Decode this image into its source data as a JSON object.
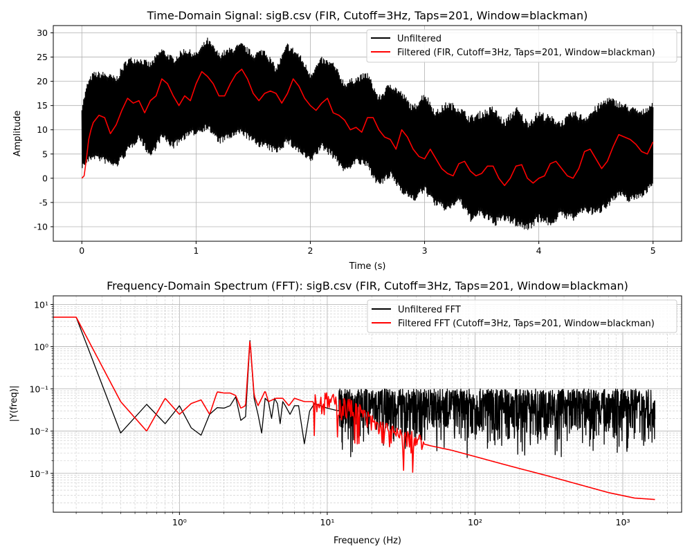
{
  "chart_data": [
    {
      "type": "line",
      "title": "Time-Domain Signal: sigB.csv (FIR, Cutoff=3Hz, Taps=201, Window=blackman)",
      "xlabel": "Time (s)",
      "ylabel": "Amplitude",
      "xlim": [
        -0.25,
        5.25
      ],
      "ylim": [
        -13,
        31.5
      ],
      "xticks": [
        0,
        1,
        2,
        3,
        4,
        5
      ],
      "yticks": [
        -10,
        -5,
        0,
        5,
        10,
        15,
        20,
        25,
        30
      ],
      "grid": true,
      "legend_position": "top-right",
      "series": [
        {
          "name": "Unfiltered",
          "color": "#000000",
          "style": "band",
          "x": [
            0,
            0.05,
            0.1,
            0.2,
            0.3,
            0.4,
            0.5,
            0.6,
            0.7,
            0.8,
            0.9,
            1.0,
            1.1,
            1.2,
            1.3,
            1.4,
            1.5,
            1.6,
            1.7,
            1.8,
            1.9,
            2.0,
            2.1,
            2.2,
            2.3,
            2.4,
            2.5,
            2.6,
            2.7,
            2.8,
            2.9,
            3.0,
            3.1,
            3.2,
            3.3,
            3.4,
            3.5,
            3.6,
            3.7,
            3.8,
            3.9,
            4.0,
            4.1,
            4.2,
            4.3,
            4.4,
            4.5,
            4.6,
            4.7,
            4.8,
            4.9,
            5.0
          ],
          "upper": [
            15,
            20,
            22,
            22,
            21,
            25,
            25,
            24,
            27,
            25,
            27,
            26,
            29,
            26,
            27,
            28,
            26,
            27,
            23,
            28,
            26,
            22,
            25,
            24,
            20,
            21,
            22,
            17,
            20,
            18,
            15,
            18,
            14,
            16,
            15,
            13,
            14,
            15,
            12,
            15,
            12,
            14,
            13,
            12,
            14,
            13,
            15,
            17,
            16,
            15,
            14,
            16
          ],
          "lower": [
            2,
            3,
            4,
            3,
            2,
            5,
            8,
            4,
            8,
            6,
            8,
            9,
            10,
            7,
            8,
            9,
            7,
            6,
            5,
            7,
            5,
            3,
            6,
            4,
            1,
            3,
            2,
            -2,
            0,
            -3,
            -5,
            -3,
            -6,
            -7,
            -5,
            -9,
            -8,
            -10,
            -9,
            -10,
            -11,
            -9,
            -10,
            -8,
            -9,
            -7,
            -8,
            -6,
            -4,
            -5,
            -4,
            -2
          ]
        },
        {
          "name": "Filtered (FIR, Cutoff=3Hz, Taps=201, Window=blackman)",
          "color": "#ff0000",
          "style": "line",
          "x": [
            0,
            0.02,
            0.04,
            0.06,
            0.08,
            0.1,
            0.15,
            0.2,
            0.25,
            0.3,
            0.35,
            0.4,
            0.45,
            0.5,
            0.55,
            0.6,
            0.65,
            0.7,
            0.75,
            0.8,
            0.85,
            0.9,
            0.95,
            1.0,
            1.05,
            1.1,
            1.15,
            1.2,
            1.25,
            1.3,
            1.35,
            1.4,
            1.45,
            1.5,
            1.55,
            1.6,
            1.65,
            1.7,
            1.75,
            1.8,
            1.85,
            1.9,
            1.95,
            2.0,
            2.05,
            2.1,
            2.15,
            2.2,
            2.25,
            2.3,
            2.35,
            2.4,
            2.45,
            2.5,
            2.55,
            2.6,
            2.65,
            2.7,
            2.75,
            2.8,
            2.85,
            2.9,
            2.95,
            3.0,
            3.05,
            3.1,
            3.15,
            3.2,
            3.25,
            3.3,
            3.35,
            3.4,
            3.45,
            3.5,
            3.55,
            3.6,
            3.65,
            3.7,
            3.75,
            3.8,
            3.85,
            3.9,
            3.95,
            4.0,
            4.05,
            4.1,
            4.15,
            4.2,
            4.25,
            4.3,
            4.35,
            4.4,
            4.45,
            4.5,
            4.55,
            4.6,
            4.65,
            4.7,
            4.75,
            4.8,
            4.85,
            4.9,
            4.95,
            5.0
          ],
          "y": [
            0,
            0.5,
            4,
            8,
            10,
            11.5,
            13,
            12.5,
            9.2,
            11,
            14,
            16.5,
            15.5,
            16,
            13.5,
            16,
            17,
            20.5,
            19.5,
            17,
            15,
            17,
            16,
            19.5,
            22,
            21,
            19.5,
            17,
            17,
            19.5,
            21.5,
            22.5,
            20.5,
            17.5,
            16,
            17.5,
            18,
            17.5,
            15.5,
            17.5,
            20.5,
            19,
            16.5,
            15,
            14,
            15.5,
            16.5,
            13.5,
            13,
            12,
            10,
            10.5,
            9.5,
            12.5,
            12.5,
            10,
            8.5,
            8,
            6,
            10,
            8.5,
            6,
            4.5,
            4,
            6,
            4,
            2,
            1,
            0.5,
            3,
            3.5,
            1.5,
            0.5,
            1,
            2.5,
            2.5,
            0,
            -1.5,
            0,
            2.5,
            2.8,
            0,
            -1,
            0,
            0.5,
            3,
            3.5,
            2,
            0.5,
            0,
            2,
            5.5,
            6,
            4,
            2,
            3.5,
            6.5,
            9,
            8.5,
            8,
            7,
            5.5,
            5,
            7.5
          ]
        }
      ]
    },
    {
      "type": "line",
      "title": "Frequency-Domain Spectrum (FFT): sigB.csv (FIR, Cutoff=3Hz, Taps=201, Window=blackman)",
      "xlabel": "Frequency (Hz)",
      "ylabel": "|Y(freq)|",
      "xscale": "log",
      "yscale": "log",
      "xlim": [
        0.14,
        2500
      ],
      "ylim": [
        0.00012,
        16
      ],
      "xticks": [
        1,
        10,
        100,
        1000
      ],
      "xtick_labels": [
        "10⁰",
        "10¹",
        "10²",
        "10³"
      ],
      "yticks": [
        0.001,
        0.01,
        0.1,
        1,
        10
      ],
      "ytick_labels": [
        "10⁻³",
        "10⁻²",
        "10⁻¹",
        "10⁰",
        "10¹"
      ],
      "grid": true,
      "legend_position": "top-right",
      "series": [
        {
          "name": "Unfiltered FFT",
          "color": "#000000",
          "x": [
            0.05,
            0.2,
            0.4,
            0.6,
            0.8,
            1.0,
            1.2,
            1.4,
            1.6,
            1.8,
            2.0,
            2.2,
            2.4,
            2.6,
            2.8,
            3.0,
            3.2,
            3.4,
            3.6,
            3.8,
            4.0,
            4.2,
            4.4,
            4.6,
            4.8,
            5.0,
            5.2,
            5.6,
            6.0,
            6.4,
            7.0,
            7.6,
            8.2,
            9.0,
            10,
            12,
            15,
            20,
            30,
            50,
            100,
            200,
            400,
            800,
            1200,
            1400,
            1500,
            1650
          ],
          "y": [
            5,
            5,
            0.009,
            0.043,
            0.015,
            0.04,
            0.012,
            0.008,
            0.025,
            0.036,
            0.035,
            0.04,
            0.065,
            0.018,
            0.022,
            1.4,
            0.06,
            0.025,
            0.009,
            0.06,
            0.05,
            0.02,
            0.06,
            0.045,
            0.015,
            0.05,
            0.04,
            0.025,
            0.04,
            0.04,
            0.005,
            0.03,
            0.045,
            0.04,
            0.035,
            0.03,
            0.02,
            0.025,
            0.025,
            0.02,
            0.02,
            0.02,
            0.02,
            0.02,
            0.02,
            0.02,
            0.02,
            0.02
          ],
          "noise_band": {
            "from_hz": 12,
            "to_hz": 1650,
            "upper": 0.1,
            "lower": 0.0022
          }
        },
        {
          "name": "Filtered FFT (Cutoff=3Hz, Taps=201, Window=blackman)",
          "color": "#ff0000",
          "x": [
            0.05,
            0.2,
            0.4,
            0.6,
            0.8,
            1.0,
            1.2,
            1.4,
            1.6,
            1.8,
            2.0,
            2.2,
            2.4,
            2.6,
            2.8,
            3.0,
            3.2,
            3.4,
            3.6,
            3.8,
            4.0,
            4.5,
            5.0,
            5.5,
            6.0,
            7.0,
            8.0,
            9.0,
            10,
            12,
            14,
            16,
            18,
            20,
            22,
            25,
            28,
            32,
            36,
            40,
            50,
            70,
            100,
            150,
            200,
            300,
            500,
            800,
            1200,
            1650
          ],
          "y": [
            5,
            5,
            0.05,
            0.01,
            0.06,
            0.025,
            0.045,
            0.055,
            0.025,
            0.085,
            0.08,
            0.08,
            0.07,
            0.035,
            0.04,
            1.5,
            0.07,
            0.04,
            0.06,
            0.09,
            0.05,
            0.06,
            0.06,
            0.04,
            0.06,
            0.05,
            0.05,
            0.045,
            0.05,
            0.04,
            0.035,
            0.03,
            0.02,
            0.015,
            0.012,
            0.01,
            0.008,
            0.0065,
            0.006,
            0.0055,
            0.0045,
            0.0035,
            0.0025,
            0.0017,
            0.0013,
            0.0009,
            0.00055,
            0.00035,
            0.00026,
            0.00024
          ]
        }
      ]
    }
  ]
}
